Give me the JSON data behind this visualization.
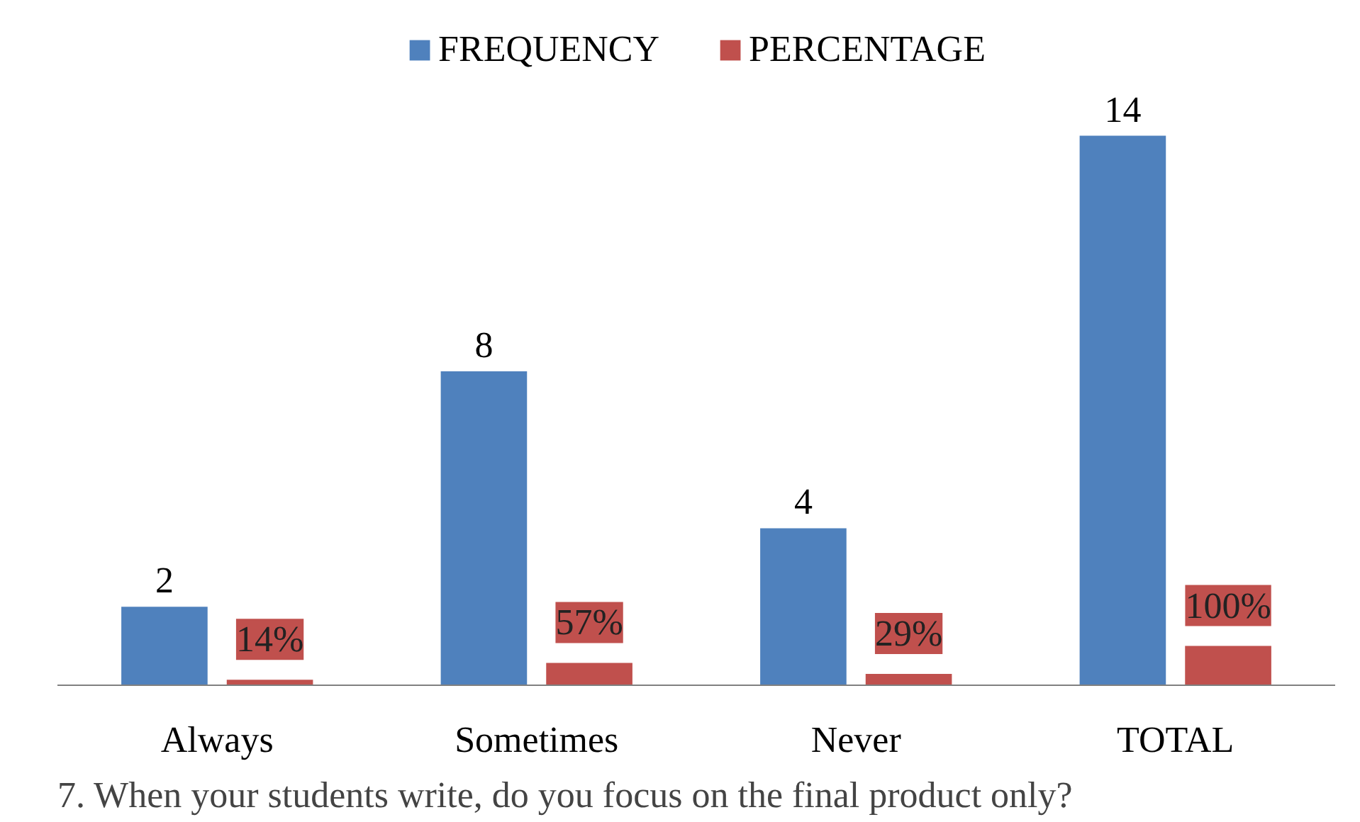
{
  "chart_data": {
    "type": "bar",
    "title": "7.  When your students write, do you focus on the final product only?",
    "categories": [
      "Always",
      "Sometimes",
      "Never",
      "TOTAL"
    ],
    "series": [
      {
        "name": "FREQUENCY",
        "color": "#4f81bd",
        "values": [
          2,
          8,
          4,
          14
        ],
        "value_labels": [
          "2",
          "8",
          "4",
          "14"
        ]
      },
      {
        "name": "PERCENTAGE",
        "color": "#c0504d",
        "values": [
          0.14,
          0.57,
          0.29,
          1.0
        ],
        "value_labels": [
          "14%",
          "57%",
          "29%",
          "100%"
        ]
      }
    ],
    "legend": "top"
  }
}
